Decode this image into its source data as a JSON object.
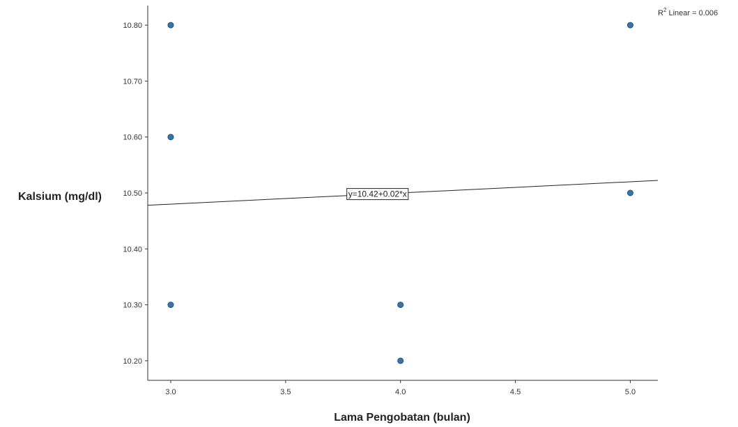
{
  "chart_data": {
    "type": "scatter",
    "xlabel": "Lama Pengobatan (bulan)",
    "ylabel": "Kalsium (mg/dl)",
    "xlim": [
      2.9,
      5.12
    ],
    "ylim": [
      10.165,
      10.835
    ],
    "x_ticks": [
      "3.0",
      "3.5",
      "4.0",
      "4.5",
      "5.0"
    ],
    "y_ticks": [
      "10.20",
      "10.30",
      "10.40",
      "10.50",
      "10.60",
      "10.70",
      "10.80"
    ],
    "grid": false,
    "point_color": "#3a75a8",
    "points": [
      {
        "x": 3.0,
        "y": 10.8
      },
      {
        "x": 3.0,
        "y": 10.6
      },
      {
        "x": 3.0,
        "y": 10.3
      },
      {
        "x": 4.0,
        "y": 10.3
      },
      {
        "x": 4.0,
        "y": 10.2
      },
      {
        "x": 5.0,
        "y": 10.8
      },
      {
        "x": 5.0,
        "y": 10.5
      }
    ],
    "fit_line": {
      "intercept": 10.42,
      "slope": 0.02,
      "equation_label": "y=10.42+0.02*x"
    },
    "r2_annotation": {
      "prefix": "R",
      "superscript": "2",
      "text": " Linear = 0.006"
    }
  }
}
